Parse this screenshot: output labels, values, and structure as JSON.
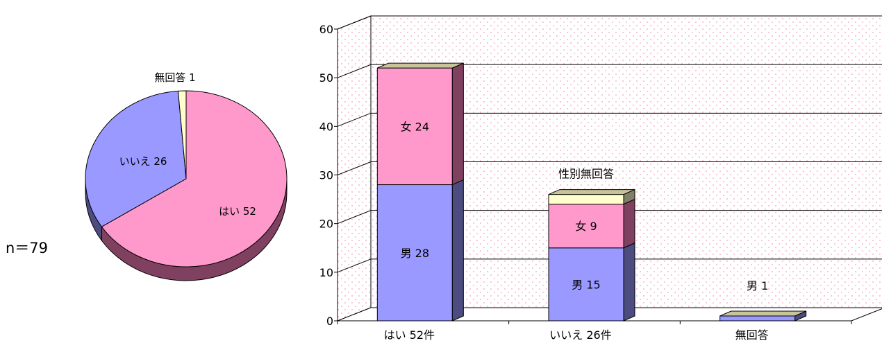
{
  "chart_data": [
    {
      "type": "pie",
      "categories": [
        "はい",
        "いいえ",
        "無回答"
      ],
      "values": [
        52,
        26,
        1
      ],
      "labels": [
        "はい 52",
        "いいえ 26",
        "無回答 1"
      ],
      "colors": [
        "#ff99cc",
        "#9999ff",
        "#ffffcc"
      ],
      "side_colors": [
        "#804060",
        "#4c4c80",
        "#808066"
      ],
      "sample_size": "n＝79",
      "style": "3d"
    },
    {
      "type": "bar",
      "stacked": true,
      "style": "3d",
      "categories": [
        "はい 52件",
        "いいえ 26件",
        "無回答"
      ],
      "series": [
        {
          "name": "男",
          "values": [
            28,
            15,
            1
          ],
          "color": "#9999ff",
          "side_color": "#4c4c80"
        },
        {
          "name": "女",
          "values": [
            24,
            9,
            0
          ],
          "color": "#ff99cc",
          "side_color": "#804060"
        },
        {
          "name": "性別無回答",
          "values": [
            0,
            2,
            0
          ],
          "color": "#ffffcc",
          "side_color": "#808066"
        }
      ],
      "top_color": "#c8c49a",
      "segment_labels": [
        [
          "男 28",
          "女 24",
          ""
        ],
        [
          "男 15",
          "女 9",
          "性別無回答"
        ],
        [
          "男 1",
          "",
          ""
        ]
      ],
      "ylim": [
        0,
        60
      ],
      "yticks": [
        0,
        10,
        20,
        30,
        40,
        50,
        60
      ],
      "grid": true,
      "background": "pink-dotted"
    }
  ]
}
